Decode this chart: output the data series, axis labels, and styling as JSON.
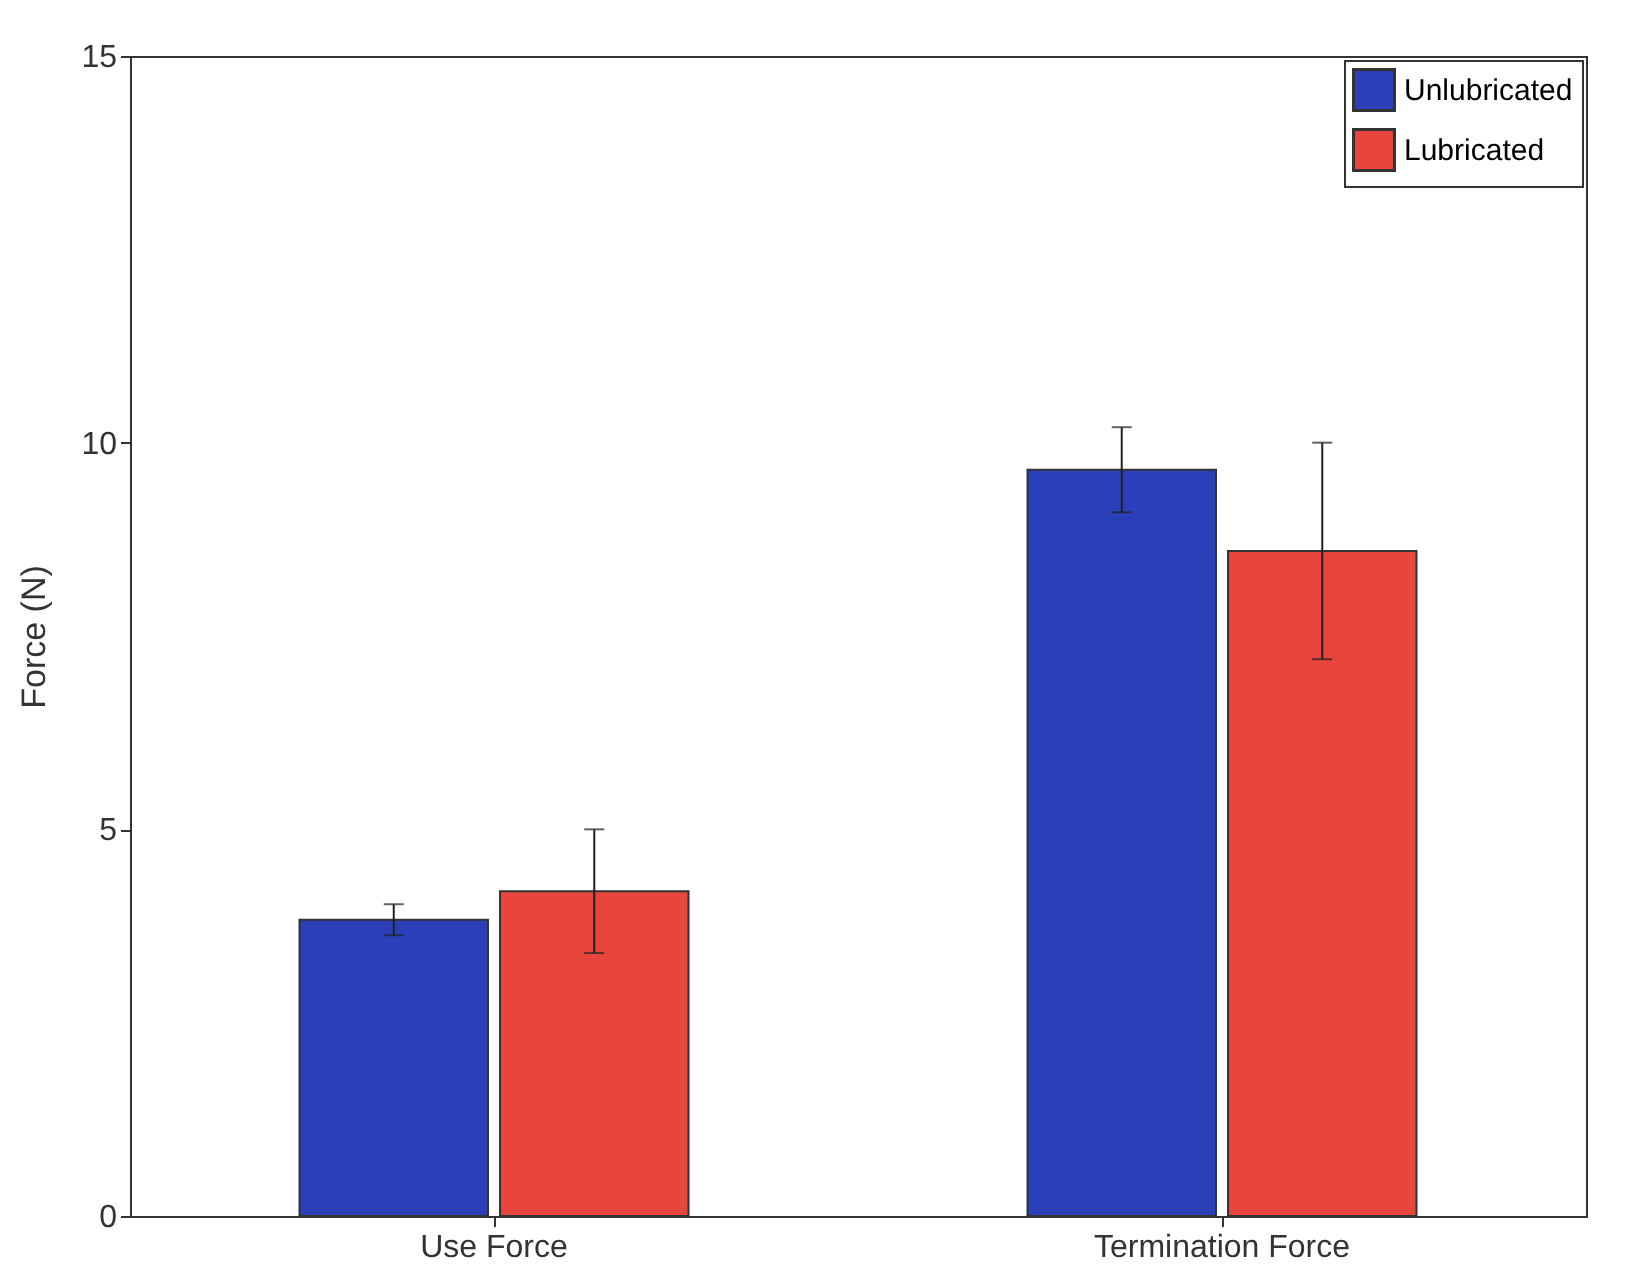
{
  "chart_data": {
    "type": "bar",
    "ylabel": "Force (N)",
    "categories": [
      "Use Force",
      "Termination Force"
    ],
    "series": [
      {
        "name": "Unlubricated",
        "color": "#2b3fb8",
        "values": [
          3.83,
          9.65
        ],
        "errors": [
          0.2,
          0.55
        ]
      },
      {
        "name": "Lubricated",
        "color": "#e8453c",
        "values": [
          4.2,
          8.6
        ],
        "errors": [
          0.8,
          1.4
        ]
      }
    ],
    "ylim": [
      0,
      15
    ],
    "yticks": [
      0,
      5,
      10,
      15
    ],
    "grid": false,
    "legend": "top right"
  }
}
